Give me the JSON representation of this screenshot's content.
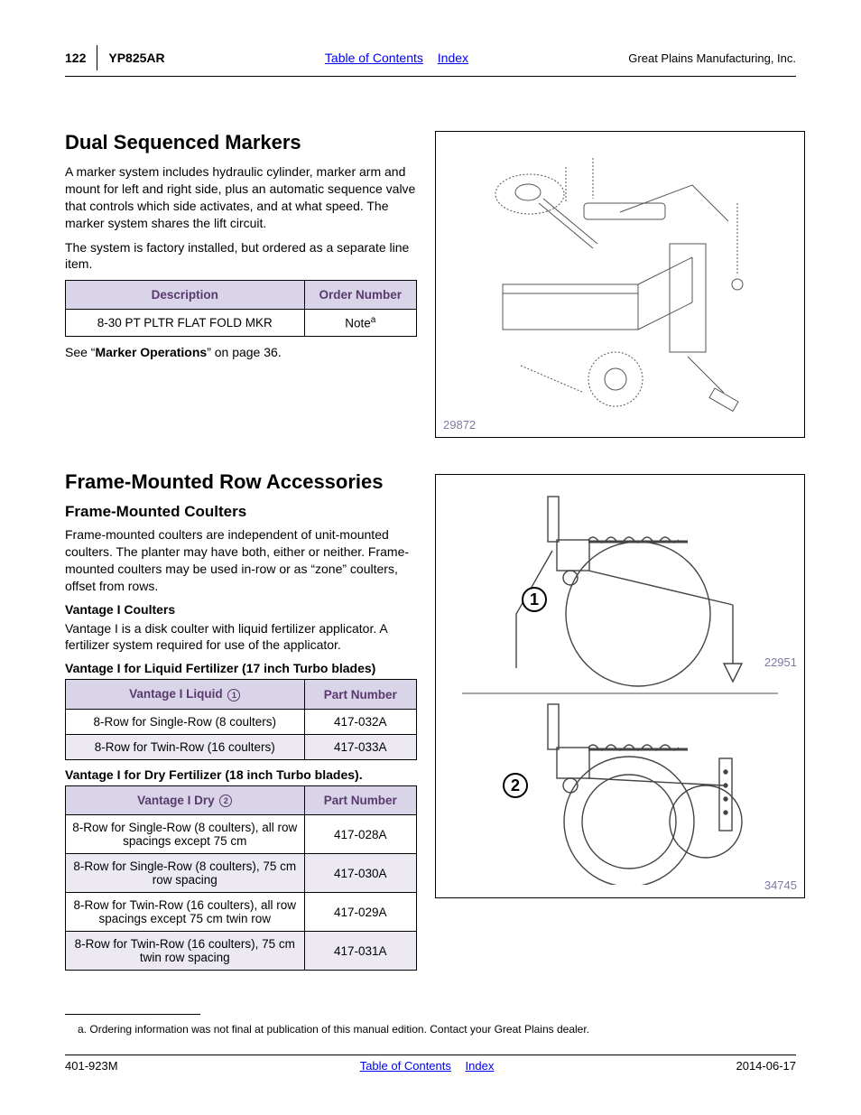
{
  "header": {
    "page_number": "122",
    "model": "YP825AR",
    "toc_link": "Table of Contents",
    "index_link": "Index",
    "company": "Great Plains Manufacturing, Inc."
  },
  "section1": {
    "heading": "Dual Sequenced Markers",
    "para1": "A marker system includes hydraulic cylinder, marker arm and mount for left and right side, plus an automatic sequence valve that controls which side activates, and at what speed. The marker system shares the lift circuit.",
    "para2": "The system is factory installed, but ordered as a separate line item.",
    "table": {
      "headers": [
        "Description",
        "Order Number"
      ],
      "rows": [
        {
          "desc": "8-30 PT PLTR FLAT FOLD MKR",
          "num": "Note",
          "sup": "a"
        }
      ]
    },
    "see_prefix": "See “",
    "see_bold": "Marker Operations",
    "see_suffix": "” on page 36.",
    "fig_id": "29872"
  },
  "section2": {
    "heading": "Frame-Mounted Row Accessories",
    "sub_heading": "Frame-Mounted Coulters",
    "para1": "Frame-mounted coulters are independent of unit-mounted coulters. The planter may have both, either or neither. Frame-mounted coulters may be used in-row or as “zone” coulters, offset from rows.",
    "sub4a": "Vantage I Coulters",
    "para2": "Vantage I is a disk coulter with liquid fertilizer applicator. A fertilizer system required for use of the applicator.",
    "t1_title": "Vantage I for Liquid Fertilizer (17 inch Turbo blades)",
    "t1": {
      "h1": "Vantage I Liquid",
      "h1_ball": "1",
      "h2": "Part Number",
      "rows": [
        {
          "d": "8-Row for Single-Row (8 coulters)",
          "p": "417-032A",
          "alt": false
        },
        {
          "d": "8-Row for Twin-Row (16 coulters)",
          "p": "417-033A",
          "alt": true
        }
      ]
    },
    "t2_title": "Vantage I for Dry Fertilizer (18 inch Turbo blades).",
    "t2": {
      "h1": "Vantage I Dry",
      "h1_ball": "2",
      "h2": "Part Number",
      "rows": [
        {
          "d": "8-Row for Single-Row (8 coulters), all row spacings except 75 cm",
          "p": "417-028A",
          "alt": false
        },
        {
          "d": "8-Row for Single-Row (8 coulters), 75 cm row spacing",
          "p": "417-030A",
          "alt": true
        },
        {
          "d": "8-Row for Twin-Row (16 coulters), all row spacings except 75 cm twin row",
          "p": "417-029A",
          "alt": false
        },
        {
          "d": "8-Row for Twin-Row (16 coulters), 75 cm twin row spacing",
          "p": "417-031A",
          "alt": true
        }
      ]
    },
    "fig_id_a": "22951",
    "fig_id_b": "34745",
    "ball1": "1",
    "ball2": "2"
  },
  "footnote": {
    "mark": "a.",
    "text": "Ordering information was not final at publication of this manual edition. Contact your Great Plains dealer."
  },
  "footer": {
    "doc_id": "401-923M",
    "toc_link": "Table of Contents",
    "index_link": "Index",
    "date": "2014-06-17"
  }
}
